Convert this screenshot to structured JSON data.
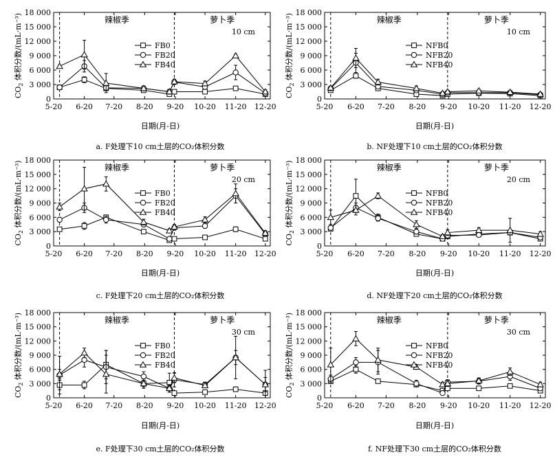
{
  "figure": {
    "x_categories": [
      "5-20",
      "6-20",
      "7-20",
      "8-20",
      "9-20",
      "10-20",
      "11-20",
      "12-20"
    ],
    "x_tick_days": [
      0,
      31,
      61,
      92,
      123,
      153,
      184,
      214
    ],
    "y_ticks": [
      "0",
      "3 000",
      "6 000",
      "9 000",
      "12 000",
      "15 000",
      "18 000"
    ],
    "xlabel": "日期(月-日)",
    "ylabel_prefix": "CO",
    "ylabel_sub": "2",
    "ylabel_suffix": " 体积分数/(mL·m⁻³)",
    "season_labels": [
      "辣椒季",
      "萝卜季"
    ],
    "season_boundaries_day": [
      6,
      122
    ]
  },
  "chart_data": [
    {
      "type": "line",
      "panel": "a",
      "title": "a. F处理下10 cm土层的CO₂体积分数",
      "depth_label": "10 cm",
      "ylim": [
        0,
        18000
      ],
      "x_days": [
        6,
        31,
        53,
        91,
        117,
        122,
        153,
        184,
        214
      ],
      "series": [
        {
          "name": "FB0",
          "marker": "square",
          "values": [
            2400,
            4000,
            2200,
            1800,
            1000,
            1500,
            1500,
            2200,
            1000
          ],
          "errors": [
            300,
            600,
            300,
            200,
            300,
            200,
            300,
            200,
            200
          ]
        },
        {
          "name": "FB20",
          "marker": "circle",
          "values": [
            2400,
            6800,
            2300,
            2200,
            1500,
            3500,
            2500,
            5500,
            1200
          ],
          "errors": [
            300,
            1200,
            500,
            400,
            400,
            400,
            400,
            1500,
            400
          ]
        },
        {
          "name": "FB40",
          "marker": "triangle",
          "values": [
            6800,
            9200,
            3300,
            2200,
            1500,
            3600,
            3200,
            9000,
            1500
          ],
          "errors": [
            200,
            3000,
            2000,
            500,
            500,
            500,
            500,
            300,
            400
          ]
        }
      ]
    },
    {
      "type": "line",
      "panel": "b",
      "title": "b. NF处理下10 cm土层的CO₂体积分数",
      "depth_label": "10 cm",
      "ylim": [
        0,
        18000
      ],
      "x_days": [
        6,
        31,
        53,
        91,
        117,
        122,
        153,
        184,
        214
      ],
      "series": [
        {
          "name": "NFB0",
          "marker": "square",
          "values": [
            1800,
            4800,
            2200,
            1000,
            700,
            1000,
            1200,
            1100,
            700
          ],
          "errors": [
            200,
            500,
            300,
            200,
            200,
            200,
            200,
            200,
            200
          ]
        },
        {
          "name": "NFB20",
          "marker": "circle",
          "values": [
            2200,
            7500,
            2600,
            1800,
            1000,
            1300,
            1300,
            1300,
            900
          ],
          "errors": [
            300,
            2000,
            400,
            300,
            300,
            300,
            300,
            300,
            300
          ]
        },
        {
          "name": "NFB40",
          "marker": "triangle",
          "values": [
            2300,
            8500,
            3500,
            2200,
            1200,
            1500,
            1700,
            1400,
            1000
          ],
          "errors": [
            300,
            2000,
            600,
            500,
            300,
            300,
            300,
            300,
            300
          ]
        }
      ]
    },
    {
      "type": "line",
      "panel": "c",
      "title": "c. F处理下20 cm土层的CO₂体积分数",
      "depth_label": "20 cm",
      "ylim": [
        0,
        18000
      ],
      "x_days": [
        6,
        31,
        53,
        91,
        117,
        122,
        153,
        184,
        214
      ],
      "series": [
        {
          "name": "FB0",
          "marker": "square",
          "values": [
            3500,
            4200,
            6000,
            3000,
            1200,
            1500,
            1800,
            3500,
            1500
          ],
          "errors": [
            300,
            700,
            500,
            400,
            300,
            300,
            300,
            500,
            300
          ]
        },
        {
          "name": "FB20",
          "marker": "circle",
          "values": [
            5500,
            8000,
            5500,
            4500,
            1500,
            3800,
            4200,
            10500,
            2500
          ],
          "errors": [
            500,
            1000,
            700,
            500,
            300,
            500,
            500,
            1500,
            500
          ]
        },
        {
          "name": "FB40",
          "marker": "triangle",
          "values": [
            8200,
            12000,
            13000,
            5000,
            3200,
            4000,
            5500,
            11000,
            2700
          ],
          "errors": [
            800,
            4500,
            1500,
            600,
            400,
            500,
            600,
            2000,
            500
          ]
        }
      ]
    },
    {
      "type": "line",
      "panel": "d",
      "title": "d. NF处理下20 cm土层的CO₂体积分数",
      "depth_label": "20 cm",
      "ylim": [
        0,
        18000
      ],
      "x_days": [
        6,
        31,
        53,
        91,
        117,
        122,
        153,
        184,
        214
      ],
      "series": [
        {
          "name": "NFB0",
          "marker": "square",
          "values": [
            3600,
            10500,
            6000,
            2500,
            1500,
            2000,
            2500,
            2800,
            1500
          ],
          "errors": [
            400,
            3500,
            700,
            400,
            300,
            400,
            400,
            400,
            300
          ]
        },
        {
          "name": "NFB20",
          "marker": "circle",
          "values": [
            3800,
            8000,
            5800,
            3000,
            1500,
            2200,
            2300,
            2800,
            1800
          ],
          "errors": [
            400,
            1000,
            600,
            500,
            300,
            500,
            400,
            400,
            300
          ]
        },
        {
          "name": "NFB40",
          "marker": "triangle",
          "values": [
            6000,
            7500,
            10500,
            4500,
            2000,
            2800,
            3300,
            3300,
            2500
          ],
          "errors": [
            1500,
            1000,
            600,
            800,
            400,
            600,
            500,
            2500,
            500
          ]
        }
      ]
    },
    {
      "type": "line",
      "panel": "e",
      "title": "e. F处理下30 cm土层的CO₂体积分数",
      "depth_label": "30 cm",
      "ylim": [
        0,
        18000
      ],
      "x_days": [
        6,
        31,
        53,
        91,
        117,
        122,
        153,
        184,
        214
      ],
      "series": [
        {
          "name": "FB0",
          "marker": "square",
          "values": [
            2700,
            2700,
            7000,
            3000,
            3200,
            1000,
            1200,
            1800,
            1000
          ],
          "errors": [
            1000,
            800,
            3000,
            700,
            2000,
            300,
            300,
            500,
            300
          ]
        },
        {
          "name": "FB20",
          "marker": "circle",
          "values": [
            4800,
            8000,
            6500,
            4500,
            2000,
            3800,
            2800,
            8500,
            2800
          ],
          "errors": [
            4000,
            1500,
            3500,
            1000,
            800,
            1500,
            500,
            4500,
            1500
          ]
        },
        {
          "name": "FB40",
          "marker": "triangle",
          "values": [
            5000,
            9500,
            5000,
            3000,
            2000,
            4200,
            2600,
            8500,
            2800
          ],
          "errors": [
            1000,
            1000,
            4000,
            1000,
            500,
            1000,
            500,
            1500,
            3000
          ]
        }
      ]
    },
    {
      "type": "line",
      "panel": "f",
      "title": "f. NF处理下30 cm土层的CO₂体积分数",
      "depth_label": "30 cm",
      "ylim": [
        0,
        18000
      ],
      "x_days": [
        6,
        31,
        53,
        91,
        117,
        122,
        153,
        184,
        214
      ],
      "series": [
        {
          "name": "NFB0",
          "marker": "square",
          "values": [
            3500,
            6000,
            3500,
            2800,
            1500,
            2000,
            2000,
            2500,
            1500
          ],
          "errors": [
            400,
            800,
            400,
            400,
            300,
            300,
            300,
            400,
            300
          ]
        },
        {
          "name": "NFB20",
          "marker": "circle",
          "values": [
            4000,
            7500,
            7500,
            3000,
            1000,
            3300,
            3500,
            4500,
            2000
          ],
          "errors": [
            800,
            1000,
            2500,
            700,
            300,
            500,
            600,
            800,
            400
          ]
        },
        {
          "name": "NFB40",
          "marker": "triangle",
          "values": [
            7000,
            12500,
            8000,
            6500,
            2800,
            3000,
            3600,
            5500,
            2800
          ],
          "errors": [
            3500,
            1500,
            2500,
            500,
            500,
            600,
            600,
            800,
            500
          ]
        }
      ]
    }
  ]
}
